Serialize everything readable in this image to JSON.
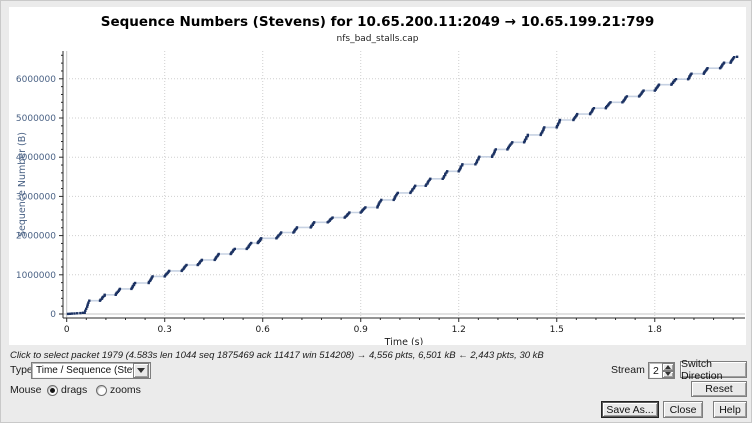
{
  "window": {
    "background": "#ebebeb"
  },
  "chart": {
    "title": "Sequence Numbers (Stevens) for 10.65.200.11:2049 → 10.65.199.21:799",
    "subtitle": "nfs_bad_stalls.cap"
  },
  "chart_data": {
    "type": "scatter",
    "title": "Sequence Numbers (Stevens) for 10.65.200.11:2049 → 10.65.199.21:799",
    "subtitle": "nfs_bad_stalls.cap",
    "xlabel": "Time (s)",
    "ylabel": "Sequence Number (B)",
    "xlim": [
      -0.011,
      2.08
    ],
    "ylim": [
      -110000,
      6720000
    ],
    "x_ticks": [
      0,
      0.3,
      0.6,
      0.9,
      1.2,
      1.5,
      1.8
    ],
    "x_minor_step": 0.06,
    "y_ticks": [
      0,
      1000000,
      2000000,
      3000000,
      4000000,
      5000000,
      6000000
    ],
    "y_minor_step": 200000,
    "grid": "dotted, zero lines solid",
    "legend": "none",
    "series_description": "TCP sequence-number-vs-time step plot: dense near-vertical bursts of segments separated by horizontal stalls, rising from 0 at t≈0 to ≈6.55 MB at t≈2.05 s",
    "initial_points": [
      [
        0.004,
        2000
      ],
      [
        0.01,
        5000
      ],
      [
        0.016,
        9000
      ],
      [
        0.024,
        13000
      ],
      [
        0.032,
        17000
      ],
      [
        0.042,
        22000
      ],
      [
        0.05,
        30000
      ]
    ],
    "bursts": [
      [
        0.055,
        340000
      ],
      [
        0.102,
        490000
      ],
      [
        0.15,
        640000
      ],
      [
        0.198,
        790000
      ],
      [
        0.251,
        960000
      ],
      [
        0.3,
        1100000
      ],
      [
        0.352,
        1250000
      ],
      [
        0.401,
        1380000
      ],
      [
        0.453,
        1530000
      ],
      [
        0.502,
        1660000
      ],
      [
        0.551,
        1810000
      ],
      [
        0.585,
        1930000,
        12
      ],
      [
        0.642,
        2080000
      ],
      [
        0.694,
        2210000
      ],
      [
        0.747,
        2340000
      ],
      [
        0.799,
        2460000
      ],
      [
        0.851,
        2590000
      ],
      [
        0.9,
        2720000
      ],
      [
        0.951,
        2910000
      ],
      [
        1.001,
        3090000
      ],
      [
        1.052,
        3270000
      ],
      [
        1.099,
        3450000
      ],
      [
        1.151,
        3640000
      ],
      [
        1.2,
        3820000
      ],
      [
        1.251,
        4010000
      ],
      [
        1.302,
        4200000
      ],
      [
        1.349,
        4380000
      ],
      [
        1.4,
        4570000
      ],
      [
        1.451,
        4760000
      ],
      [
        1.5,
        4950000
      ],
      [
        1.551,
        5100000
      ],
      [
        1.602,
        5250000
      ],
      [
        1.65,
        5400000
      ],
      [
        1.701,
        5550000
      ],
      [
        1.752,
        5700000
      ],
      [
        1.8,
        5850000
      ],
      [
        1.851,
        5990000
      ],
      [
        1.902,
        6130000
      ],
      [
        1.95,
        6270000
      ],
      [
        2.0,
        6410000
      ],
      [
        2.032,
        6550000
      ]
    ],
    "trailing_point": [
      2.052,
      6560000
    ],
    "colors": {
      "dot": "#1c3263",
      "connector_line": "#c7d2e3",
      "y_axis_text": "#4a6285",
      "x_axis_text": "#1a1a1a",
      "axis_line": "#2a2a2a",
      "grid_dotted": "#cfcfcf",
      "zero_line": "#c4c4c4"
    }
  },
  "status": {
    "hint": "Click to select packet 1979 (4.583s len 1044 seq 1875469 ack 11417 win 514208) → 4,556 pkts, 6,501 kB ← 2,443 pkts, 30 kB"
  },
  "controls": {
    "type_label": "Type",
    "type_value": "Time / Sequence (Stevens)",
    "mouse_label": "Mouse",
    "drags_label": "drags",
    "zooms_label": "zooms",
    "stream_label": "Stream",
    "stream_value": "2",
    "switch_direction_label": "Switch Direction",
    "reset_label": "Reset",
    "save_as_label": "Save As...",
    "close_label": "Close",
    "help_label": "Help"
  }
}
